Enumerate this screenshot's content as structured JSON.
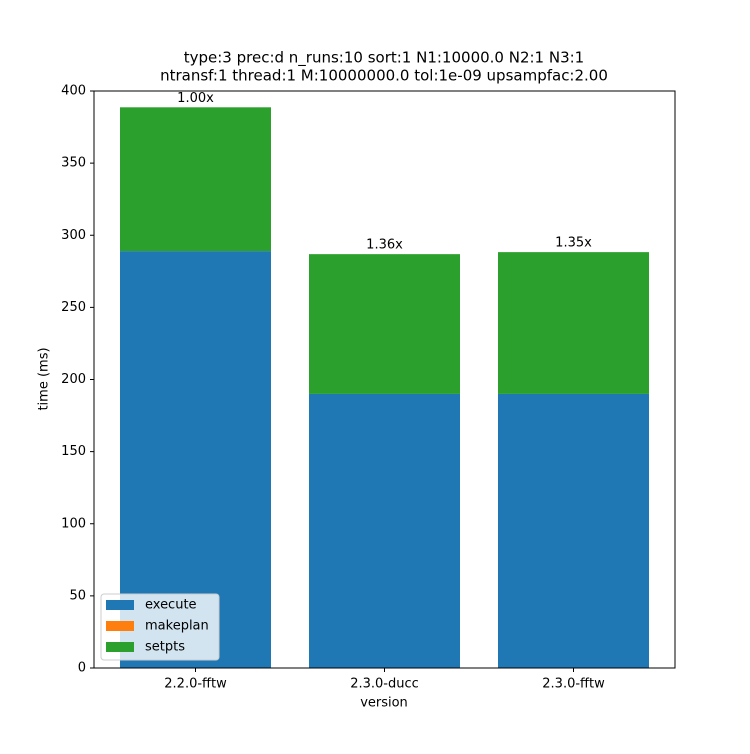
{
  "chart_data": {
    "type": "stacked_bar",
    "title": [
      "type:3 prec:d n_runs:10 sort:1 N1:10000.0 N2:1 N3:1",
      "ntransf:1 thread:1 M:10000000.0 tol:1e-09 upsampfac:2.00"
    ],
    "xlabel": "version",
    "ylabel": "time (ms)",
    "categories": [
      "2.2.0-fftw",
      "2.3.0-ducc",
      "2.3.0-fftw"
    ],
    "series": [
      {
        "name": "execute",
        "color": "#1f77b4",
        "values": [
          289,
          190,
          190
        ]
      },
      {
        "name": "makeplan",
        "color": "#ff7f0e",
        "values": [
          0,
          0,
          0
        ]
      },
      {
        "name": "setpts",
        "color": "#2ca02c",
        "values": [
          99.7,
          96.9,
          98.3
        ]
      }
    ],
    "annotations": [
      "1.00x",
      "1.36x",
      "1.35x"
    ],
    "ylim": [
      0,
      400
    ],
    "yticks": [
      0,
      50,
      100,
      150,
      200,
      250,
      300,
      350,
      400
    ],
    "legend": "lower left"
  }
}
